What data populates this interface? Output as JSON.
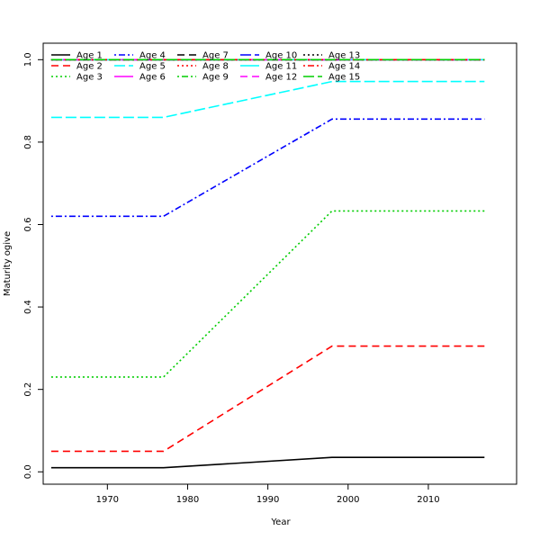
{
  "chart_data": {
    "type": "line",
    "title": "",
    "xlabel": "Year",
    "ylabel": "Maturity ogive",
    "xlim": [
      1962,
      2021
    ],
    "ylim": [
      -0.03,
      1.04
    ],
    "xticks": [
      1970,
      1980,
      1990,
      2000,
      2010
    ],
    "xtick_labels": [
      "1970",
      "1980",
      "1990",
      "2000",
      "2010"
    ],
    "yticks": [
      0.0,
      0.2,
      0.4,
      0.6,
      0.8,
      1.0
    ],
    "ytick_labels": [
      "0.0",
      "0.2",
      "0.4",
      "0.6",
      "0.8",
      "1.0"
    ],
    "grid": false,
    "legend": {
      "placement": "top-left",
      "columns": 5
    },
    "x": [
      1963,
      1977,
      1998,
      2017
    ],
    "series": [
      {
        "name": "Age 1",
        "values": [
          0.01,
          0.01,
          0.035,
          0.035
        ],
        "color": "#000000",
        "dash": "solid"
      },
      {
        "name": "Age 2",
        "values": [
          0.05,
          0.05,
          0.305,
          0.305
        ],
        "color": "#ff0000",
        "dash": "dashed"
      },
      {
        "name": "Age 3",
        "values": [
          0.23,
          0.23,
          0.633,
          0.633
        ],
        "color": "#00cd00",
        "dash": "dotted"
      },
      {
        "name": "Age 4",
        "values": [
          0.62,
          0.62,
          0.856,
          0.856
        ],
        "color": "#0000ff",
        "dash": "dotdash"
      },
      {
        "name": "Age 5",
        "values": [
          0.86,
          0.86,
          0.947,
          0.947
        ],
        "color": "#00ffff",
        "dash": "longdash"
      },
      {
        "name": "Age 6",
        "values": [
          1.0,
          1.0,
          1.0,
          1.0
        ],
        "color": "#ff00ff",
        "dash": "solid"
      },
      {
        "name": "Age 7",
        "values": [
          1.0,
          1.0,
          1.0,
          1.0
        ],
        "color": "#000000",
        "dash": "dashed"
      },
      {
        "name": "Age 8",
        "values": [
          1.0,
          1.0,
          1.0,
          1.0
        ],
        "color": "#ff0000",
        "dash": "dotted"
      },
      {
        "name": "Age 9",
        "values": [
          1.0,
          1.0,
          1.0,
          1.0
        ],
        "color": "#00cd00",
        "dash": "dotdash"
      },
      {
        "name": "Age 10",
        "values": [
          1.0,
          1.0,
          1.0,
          1.0
        ],
        "color": "#0000ff",
        "dash": "longdash"
      },
      {
        "name": "Age 11",
        "values": [
          1.0,
          1.0,
          1.0,
          1.0
        ],
        "color": "#00ffff",
        "dash": "solid"
      },
      {
        "name": "Age 12",
        "values": [
          1.0,
          1.0,
          1.0,
          1.0
        ],
        "color": "#ff00ff",
        "dash": "dashed"
      },
      {
        "name": "Age 13",
        "values": [
          1.0,
          1.0,
          1.0,
          1.0
        ],
        "color": "#000000",
        "dash": "dotted"
      },
      {
        "name": "Age 14",
        "values": [
          1.0,
          1.0,
          1.0,
          1.0
        ],
        "color": "#ff0000",
        "dash": "dotdash"
      },
      {
        "name": "Age 15",
        "values": [
          1.0,
          1.0,
          1.0,
          1.0
        ],
        "color": "#00cd00",
        "dash": "longdash"
      }
    ]
  }
}
